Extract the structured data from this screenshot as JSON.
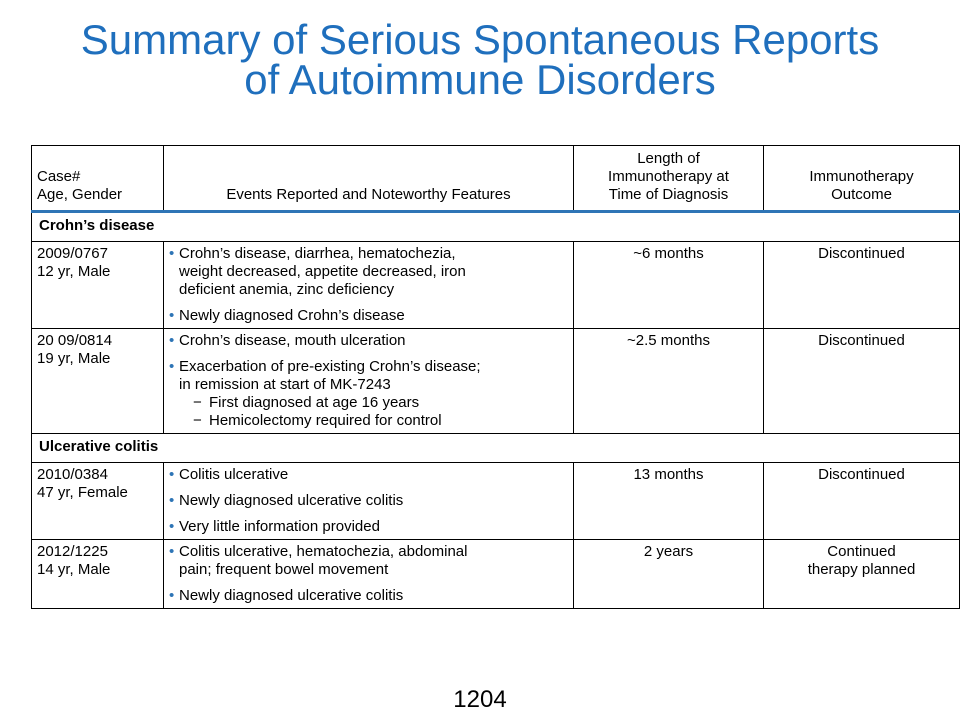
{
  "title": {
    "line1": "Summary of Serious Spontaneous Reports",
    "line2": "of Autoimmune Disorders"
  },
  "table": {
    "headers": {
      "case": "Case#\nAge, Gender",
      "events": "Events Reported and Noteworthy Features",
      "length": "Length of\nImmunotherapy at\nTime of Diagnosis",
      "outcome": "Immunotherapy\nOutcome"
    },
    "sections": [
      {
        "label": "Crohn’s disease",
        "rows": [
          {
            "case": "2009/0767\n12 yr, Male",
            "events": [
              {
                "text": "Crohn’s disease, diarrhea, hematochezia,\nweight decreased, appetite decreased, iron\ndeficient anemia, zinc deficiency",
                "subs": []
              },
              {
                "text": "Newly diagnosed Crohn’s disease",
                "subs": []
              }
            ],
            "length": "~6 months",
            "outcome": "Discontinued"
          },
          {
            "case": "20 09/0814\n19 yr, Male",
            "events": [
              {
                "text": "Crohn’s disease, mouth ulceration",
                "subs": []
              },
              {
                "text": "Exacerbation of pre-existing Crohn’s disease;\nin remission at start of MK-7243",
                "subs": [
                  "First diagnosed at age 16 years",
                  "Hemicolectomy required for control"
                ]
              }
            ],
            "length": "~2.5 months",
            "outcome": "Discontinued"
          }
        ]
      },
      {
        "label": "Ulcerative colitis",
        "rows": [
          {
            "case": "2010/0384\n47 yr, Female",
            "events": [
              {
                "text": "Colitis ulcerative",
                "subs": []
              },
              {
                "text": "Newly diagnosed ulcerative colitis",
                "subs": []
              },
              {
                "text": "Very little information provided",
                "subs": []
              }
            ],
            "length": "13 months",
            "outcome": "Discontinued"
          },
          {
            "case": "2012/1225\n14 yr, Male",
            "events": [
              {
                "text": "Colitis ulcerative, hematochezia, abdominal\npain; frequent bowel movement",
                "subs": []
              },
              {
                "text": "Newly diagnosed ulcerative colitis",
                "subs": []
              }
            ],
            "length": "2 years",
            "outcome": "Continued\ntherapy planned"
          }
        ]
      }
    ]
  },
  "page_number": "1204"
}
